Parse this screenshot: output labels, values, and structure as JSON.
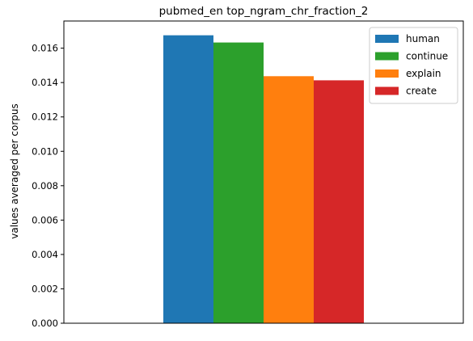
{
  "chart_data": {
    "type": "bar",
    "title": "pubmed_en top_ngram_chr_fraction_2",
    "xlabel": "",
    "ylabel": "values averaged per corpus",
    "categories": [
      ""
    ],
    "series": [
      {
        "name": "human",
        "values": [
          0.01675
        ],
        "color": "#1f77b4"
      },
      {
        "name": "continue",
        "values": [
          0.01633
        ],
        "color": "#2ca02c"
      },
      {
        "name": "explain",
        "values": [
          0.01437
        ],
        "color": "#ff7f0e"
      },
      {
        "name": "create",
        "values": [
          0.01413
        ],
        "color": "#d62728"
      }
    ],
    "ylim": [
      0,
      0.01758
    ],
    "yticks": [
      "0.000",
      "0.002",
      "0.004",
      "0.006",
      "0.008",
      "0.010",
      "0.012",
      "0.014",
      "0.016"
    ],
    "ytick_values": [
      0,
      0.002,
      0.004,
      0.006,
      0.008,
      0.01,
      0.012,
      0.014,
      0.016
    ],
    "grid": false,
    "legend_position": "top-right"
  }
}
